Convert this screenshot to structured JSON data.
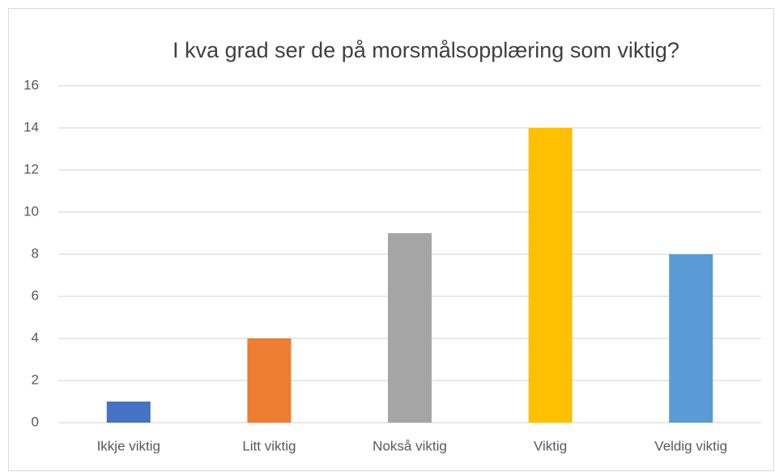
{
  "chart_data": {
    "type": "bar",
    "title": "I kva grad ser de på morsmålsopplæring som viktig?",
    "categories": [
      "Ikkje viktig",
      "Litt viktig",
      "Nokså viktig",
      "Viktig",
      "Veldig viktig"
    ],
    "values": [
      1,
      4,
      9,
      14,
      8
    ],
    "colors": [
      "#4472c4",
      "#ed7d31",
      "#a5a5a5",
      "#ffc000",
      "#5b9bd5"
    ],
    "ylim": [
      0,
      16
    ],
    "yticks": [
      0,
      2,
      4,
      6,
      8,
      10,
      12,
      14,
      16
    ],
    "grid": true
  }
}
